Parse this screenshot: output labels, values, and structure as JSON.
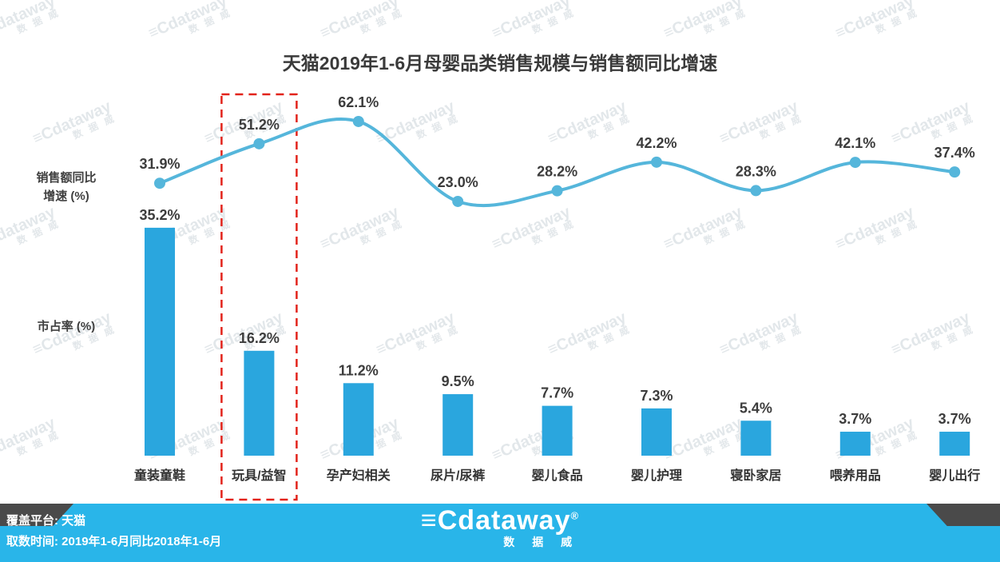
{
  "title": "天猫2019年1-6月母婴品类销售规模与销售额同比增速",
  "axis": {
    "line_label": "销售额同比\n增速 (%)",
    "bar_label": "市占率 (%)"
  },
  "chart_data": {
    "type": "combo",
    "categories": [
      "童装童鞋",
      "玩具/益智",
      "孕产妇相关",
      "尿片/尿裤",
      "婴儿食品",
      "婴儿护理",
      "寝卧家居",
      "喂养用品",
      "婴儿出行"
    ],
    "series": [
      {
        "name": "销售额同比增速 (%)",
        "type": "line",
        "values": [
          31.9,
          51.2,
          62.1,
          23.0,
          28.2,
          42.2,
          28.3,
          42.1,
          37.4
        ],
        "color": "#55B6DB"
      },
      {
        "name": "市占率 (%)",
        "type": "bar",
        "values": [
          35.2,
          16.2,
          11.2,
          9.5,
          7.7,
          7.3,
          5.4,
          3.7,
          3.7
        ],
        "color": "#2AA6DE"
      }
    ],
    "value_suffix": "%",
    "highlight": {
      "category": "玩具/益智",
      "index": 1,
      "color": "#E2231A"
    },
    "legend_position": "none",
    "grid": false
  },
  "footer": {
    "platform": "覆盖平台: 天猫",
    "time": "取数时间: 2019年1-6月同比2018年1-6月",
    "logo": "≡Cdataway",
    "logo_mark": "®",
    "logo_sub": "数 据 威",
    "bg_color": "#29B5E9"
  },
  "watermark": {
    "text": "≡Cdataway",
    "sub": "数 据 威"
  }
}
